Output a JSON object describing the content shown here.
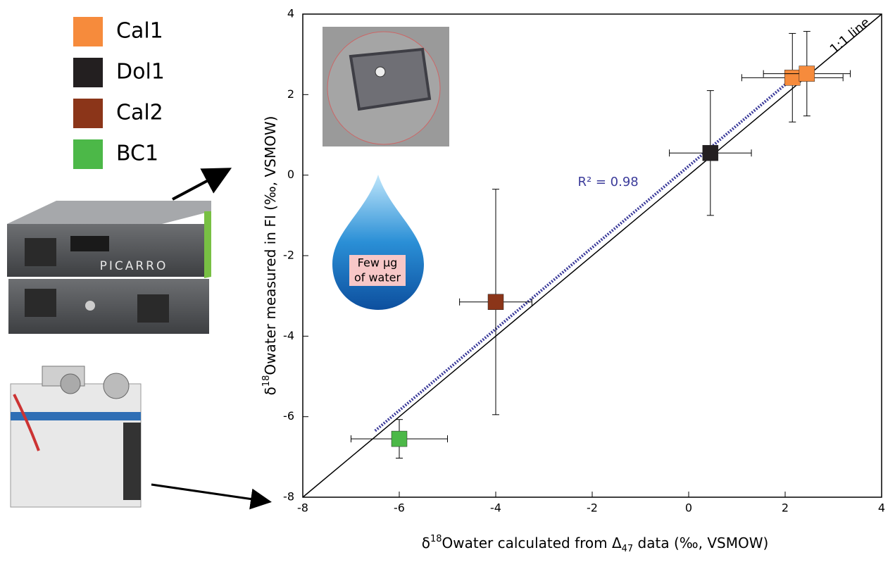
{
  "chart_data": {
    "type": "scatter",
    "x_label": [
      "δ",
      "18",
      "Owater calculated from Δ",
      "47",
      " data (‰, VSMOW)"
    ],
    "y_label": [
      "δ",
      "18",
      "Owater measured in FI (‰, VSMOW)"
    ],
    "xlim": [
      -8,
      4
    ],
    "ylim": [
      -8,
      4
    ],
    "xticks": [
      -8,
      -6,
      -4,
      -2,
      0,
      2,
      4
    ],
    "yticks": [
      -8,
      -6,
      -4,
      -2,
      0,
      2,
      4
    ],
    "series": [
      {
        "name": "Cal1",
        "color": "#f68b3c",
        "x": [
          2.15,
          2.45
        ],
        "y": [
          2.42,
          2.52
        ],
        "xerr": [
          1.05,
          0.9
        ],
        "yerr": [
          1.1,
          1.05
        ]
      },
      {
        "name": "Dol1",
        "color": "#231f20",
        "x": [
          0.45
        ],
        "y": [
          0.55
        ],
        "xerr": [
          0.85
        ],
        "yerr": [
          1.55
        ]
      },
      {
        "name": "Cal2",
        "color": "#8b3519",
        "x": [
          -4.0
        ],
        "y": [
          -3.15
        ],
        "xerr": [
          0.75
        ],
        "yerr": [
          2.8
        ]
      },
      {
        "name": "BC1",
        "color": "#4cb848",
        "x": [
          -6.0
        ],
        "y": [
          -6.55
        ],
        "xerr": [
          1.0
        ],
        "yerr": [
          0.48
        ]
      }
    ],
    "reference_line": {
      "label": "1:1 line",
      "x": [
        -8,
        4
      ],
      "y": [
        -8,
        4
      ]
    },
    "fit_line": {
      "label": "R² = 0.98",
      "color": "#3b3b9a",
      "x": [
        -6.5,
        2.2
      ],
      "y": [
        -6.35,
        2.45
      ]
    },
    "drop_label": [
      "Few μg",
      "of water"
    ],
    "instrument_label": "PICARRO"
  }
}
